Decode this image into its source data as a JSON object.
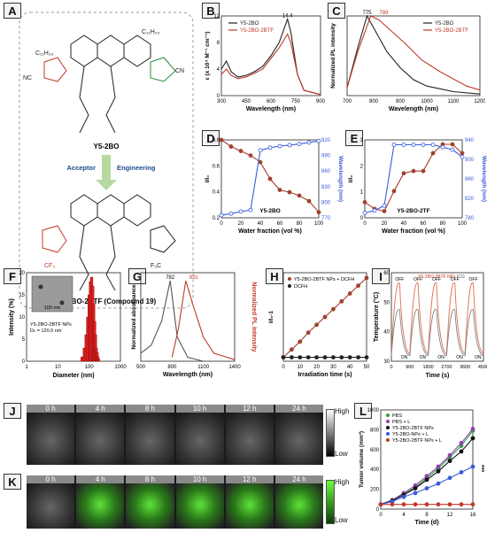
{
  "panels": {
    "A": {
      "letter": "A",
      "mol_top": "Y5-2BO",
      "arrow_left": "Acceptor",
      "arrow_right": "Engineering",
      "mol_bottom": "Y5-2BO-2BTF (Compound 19)",
      "sub_c11": "C₁₁H₂₃",
      "sub_cn": "CN",
      "sub_nc": "NC",
      "sub_cf3": "CF₃",
      "sub_f3c": "F₃C",
      "sub_o": "O",
      "sub_s": "S",
      "sub_n": "N"
    },
    "B": {
      "letter": "B",
      "legend": [
        "Y5-2BO",
        "Y5-2BO-2BTF"
      ],
      "peak": "14.4",
      "xlabel": "Wavelength (nm)",
      "ylabel": "ε (x 10⁴ M⁻¹ cm⁻¹)",
      "xticks": [
        "300",
        "450",
        "600",
        "750",
        "900"
      ],
      "yticks": [
        "0",
        "4",
        "8",
        "12"
      ]
    },
    "C": {
      "letter": "C",
      "legend": [
        "Y5-2BO",
        "Y5-2BO-2BTF"
      ],
      "peaks": [
        "775",
        "789"
      ],
      "xlabel": "Wavelength (nm)",
      "ylabel": "Normalized PL intensity",
      "xticks": [
        "700",
        "800",
        "900",
        "1000",
        "1100",
        "1200"
      ]
    },
    "D": {
      "letter": "D",
      "caption": "Y5-2BO",
      "xlabel": "Water fraction (vol %)",
      "ylabel_left": "I/I₀",
      "ylabel_right": "Wavelength (nm)",
      "xticks": [
        "0",
        "20",
        "40",
        "60",
        "80",
        "100"
      ],
      "yticks_left": [
        "0.2",
        "0.4",
        "0.6",
        "0.8"
      ],
      "yticks_right": [
        "770",
        "800",
        "830",
        "860",
        "890",
        "920"
      ]
    },
    "E": {
      "letter": "E",
      "caption": "Y5-2BO-2TF",
      "xlabel": "Water fraction (vol %)",
      "ylabel_left": "I/I₀",
      "ylabel_right": "Wavelength (nm)",
      "xticks": [
        "0",
        "20",
        "40",
        "60",
        "80",
        "100"
      ],
      "yticks_left": [
        "0",
        "1",
        "2",
        "3"
      ],
      "yticks_right": [
        "780",
        "820",
        "860",
        "900",
        "940"
      ]
    },
    "F": {
      "letter": "F",
      "xlabel": "Diameter (nm)",
      "ylabel": "Intensity (%)",
      "inset_scale": "100 nm",
      "note": "Y5-2BO-2BTF NPs",
      "note2": "Dₕ = 120.0 nm",
      "xticks": [
        "1",
        "10",
        "100",
        "1000"
      ],
      "yticks": [
        "0",
        "5",
        "10",
        "15",
        "20"
      ]
    },
    "G": {
      "letter": "G",
      "peaks": [
        "782",
        "931"
      ],
      "xlabel": "Wavelength (nm)",
      "ylabel_left": "Normalized absorbance",
      "ylabel_right": "Normalized PL intensity",
      "xticks": [
        "500",
        "800",
        "1100",
        "1400"
      ]
    },
    "H": {
      "letter": "H",
      "legend": [
        "Y5-2BO-2BTF NPs + DCFH",
        "DCFH"
      ],
      "xlabel": "Irradiation time (s)",
      "ylabel": "I/I₀-1",
      "xticks": [
        "0",
        "10",
        "20",
        "30",
        "40",
        "50"
      ]
    },
    "I": {
      "letter": "I",
      "legend": [
        "Y5-2BO-2BTF NPs",
        "ICG"
      ],
      "xlabel": "Time (s)",
      "ylabel": "Temperature (°C)",
      "off": "OFF",
      "on": "ON",
      "xticks": [
        "0",
        "900",
        "1800",
        "2700",
        "3600",
        "4500"
      ],
      "yticks": [
        "30",
        "40",
        "50",
        "60"
      ]
    },
    "J": {
      "letter": "J",
      "times": [
        "0 h",
        "4 h",
        "8 h",
        "10 h",
        "12 h",
        "24 h"
      ],
      "high": "High",
      "low": "Low"
    },
    "K": {
      "letter": "K",
      "times": [
        "0 h",
        "4 h",
        "8 h",
        "10 h",
        "12 h",
        "24 h"
      ],
      "high": "High",
      "low": "Low"
    },
    "L": {
      "letter": "L",
      "legend": [
        "PBS",
        "PBS + L",
        "Y5-2BO-2BTF NPs",
        "Y5-2BO-NPs + L",
        "Y5-2BO-2BTF NPs + L"
      ],
      "xlabel": "Time (d)",
      "ylabel": "Tumor volume (mm³)",
      "sig": "***",
      "xticks": [
        "0",
        "4",
        "8",
        "12",
        "16"
      ],
      "yticks": [
        "0",
        "200",
        "400",
        "600",
        "800",
        "1000"
      ]
    }
  },
  "chart_data": [
    {
      "panel": "B",
      "type": "line",
      "xlim": [
        300,
        900
      ],
      "ylim": [
        0,
        15
      ],
      "series": [
        {
          "name": "Y5-2BO",
          "color": "#222222",
          "x": [
            300,
            330,
            360,
            400,
            450,
            500,
            550,
            600,
            650,
            700,
            720,
            760,
            800,
            900
          ],
          "y": [
            5,
            6.5,
            4.5,
            3.5,
            3.8,
            4.5,
            5.5,
            7.5,
            10,
            14.4,
            12,
            4,
            1,
            0.2
          ]
        },
        {
          "name": "Y5-2BO-2BTF",
          "color": "#c0392b",
          "x": [
            300,
            330,
            360,
            400,
            450,
            500,
            550,
            600,
            650,
            700,
            720,
            760,
            800,
            900
          ],
          "y": [
            4,
            5,
            3.8,
            3.2,
            3.5,
            4.2,
            5,
            7,
            9,
            11.6,
            10,
            4,
            1,
            0.2
          ]
        }
      ]
    },
    {
      "panel": "C",
      "type": "line",
      "xlim": [
        700,
        1200
      ],
      "ylim": [
        0,
        1
      ],
      "series": [
        {
          "name": "Y5-2BO",
          "color": "#222222",
          "x": [
            700,
            740,
            775,
            800,
            850,
            900,
            950,
            1000,
            1100,
            1200
          ],
          "y": [
            0.1,
            0.6,
            1,
            0.85,
            0.55,
            0.35,
            0.2,
            0.12,
            0.05,
            0.02
          ]
        },
        {
          "name": "Y5-2BO-2BTF",
          "color": "#c0392b",
          "x": [
            700,
            740,
            789,
            820,
            870,
            920,
            980,
            1050,
            1150,
            1200
          ],
          "y": [
            0.1,
            0.55,
            1,
            0.95,
            0.8,
            0.65,
            0.45,
            0.3,
            0.12,
            0.07
          ]
        }
      ]
    },
    {
      "panel": "D",
      "type": "line",
      "series": [
        {
          "name": "I/I0",
          "color": "#a0402e",
          "x": [
            0,
            10,
            20,
            30,
            40,
            50,
            60,
            70,
            80,
            90,
            100
          ],
          "y": [
            0.9,
            0.84,
            0.8,
            0.76,
            0.7,
            0.55,
            0.45,
            0.43,
            0.4,
            0.35,
            0.25
          ]
        },
        {
          "name": "Wavelength",
          "color": "#3a5ad9",
          "x": [
            0,
            10,
            20,
            30,
            40,
            50,
            60,
            70,
            80,
            90,
            100
          ],
          "y": [
            775,
            778,
            782,
            785,
            900,
            905,
            908,
            910,
            912,
            915,
            918
          ]
        }
      ]
    },
    {
      "panel": "E",
      "type": "line",
      "series": [
        {
          "name": "I/I0",
          "color": "#a0402e",
          "x": [
            0,
            10,
            20,
            30,
            40,
            50,
            60,
            70,
            80,
            90,
            100
          ],
          "y": [
            0.7,
            0.4,
            0.3,
            1.2,
            2.0,
            2.1,
            2.1,
            2.9,
            3.3,
            3.3,
            2.9
          ]
        },
        {
          "name": "Wavelength",
          "color": "#3a5ad9",
          "x": [
            0,
            10,
            20,
            30,
            40,
            50,
            60,
            70,
            80,
            90,
            100
          ],
          "y": [
            790,
            795,
            805,
            930,
            930,
            930,
            930,
            930,
            925,
            920,
            905
          ]
        }
      ]
    },
    {
      "panel": "F",
      "type": "bar",
      "x": [
        60,
        70,
        80,
        90,
        100,
        110,
        120,
        130,
        140,
        150,
        160,
        170,
        180,
        190,
        200
      ],
      "y": [
        1,
        3,
        6,
        10,
        15,
        18,
        19,
        17,
        13,
        9,
        6,
        3,
        2,
        1,
        0.5
      ]
    },
    {
      "panel": "G",
      "type": "line",
      "series": [
        {
          "name": "absorbance",
          "color": "#555555",
          "x": [
            500,
            600,
            700,
            782,
            850,
            950,
            1100
          ],
          "y": [
            0.1,
            0.2,
            0.5,
            1,
            0.3,
            0.05,
            0
          ]
        },
        {
          "name": "PL",
          "color": "#c0392b",
          "x": [
            800,
            860,
            931,
            1000,
            1100,
            1200,
            1400
          ],
          "y": [
            0.05,
            0.4,
            1,
            0.7,
            0.3,
            0.1,
            0.02
          ]
        }
      ]
    },
    {
      "panel": "H",
      "type": "line",
      "series": [
        {
          "name": "Y5-2BO-2BTF NPs + DCFH",
          "color": "#a0402e",
          "x": [
            0,
            5,
            10,
            15,
            20,
            25,
            30,
            35,
            40,
            45,
            50
          ],
          "y": [
            0,
            0.6,
            1.2,
            1.9,
            2.5,
            3.1,
            3.7,
            4.3,
            4.9,
            5.5,
            6.1
          ]
        },
        {
          "name": "DCFH",
          "color": "#222222",
          "x": [
            0,
            5,
            10,
            15,
            20,
            25,
            30,
            35,
            40,
            45,
            50
          ],
          "y": [
            0,
            0,
            0,
            0,
            0,
            0,
            0,
            0,
            0,
            0,
            0
          ]
        }
      ]
    },
    {
      "panel": "L",
      "type": "line",
      "series": [
        {
          "name": "PBS",
          "color": "#2e9e44",
          "x": [
            0,
            2,
            4,
            6,
            8,
            10,
            12,
            14,
            16
          ],
          "y": [
            0,
            40,
            110,
            180,
            280,
            380,
            500,
            620,
            780
          ]
        },
        {
          "name": "PBS + L",
          "color": "#8e44ad",
          "x": [
            0,
            2,
            4,
            6,
            8,
            10,
            12,
            14,
            16
          ],
          "y": [
            0,
            45,
            120,
            200,
            300,
            400,
            520,
            650,
            800
          ]
        },
        {
          "name": "Y5-2BO-2BTF NPs",
          "color": "#111111",
          "x": [
            0,
            2,
            4,
            6,
            8,
            10,
            12,
            14,
            16
          ],
          "y": [
            0,
            40,
            100,
            170,
            260,
            350,
            460,
            560,
            700
          ]
        },
        {
          "name": "Y5-2BO-NPs + L",
          "color": "#3a5ad9",
          "x": [
            0,
            2,
            4,
            6,
            8,
            10,
            12,
            14,
            16
          ],
          "y": [
            0,
            30,
            80,
            120,
            170,
            220,
            280,
            340,
            400
          ]
        },
        {
          "name": "Y5-2BO-2BTF NPs + L",
          "color": "#c0392b",
          "x": [
            0,
            2,
            4,
            6,
            8,
            10,
            12,
            14,
            16
          ],
          "y": [
            0,
            0,
            0,
            0,
            0,
            0,
            0,
            0,
            0
          ]
        }
      ]
    }
  ]
}
